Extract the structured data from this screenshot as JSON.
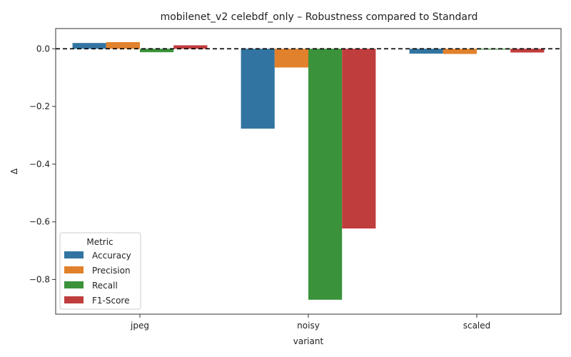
{
  "chart_data": {
    "type": "bar",
    "title": "mobilenet_v2 celebdf_only – Robustness compared to Standard",
    "xlabel": "variant",
    "ylabel": "Δ",
    "categories": [
      "jpeg",
      "noisy",
      "scaled"
    ],
    "ylim": [
      -0.92,
      0.07
    ],
    "yticks": [
      0.0,
      -0.2,
      -0.4,
      -0.6,
      -0.8
    ],
    "ytick_labels": [
      "0.0",
      "−0.2",
      "−0.4",
      "−0.6",
      "−0.8"
    ],
    "reference_line": 0.0,
    "legend": {
      "title": "Metric",
      "position": "lower-left"
    },
    "series": [
      {
        "name": "Accuracy",
        "color": "#3274a1",
        "values": [
          0.02,
          -0.277,
          -0.017
        ]
      },
      {
        "name": "Precision",
        "color": "#e1812c",
        "values": [
          0.023,
          -0.065,
          -0.018
        ]
      },
      {
        "name": "Recall",
        "color": "#3a923a",
        "values": [
          -0.012,
          -0.87,
          -0.003
        ]
      },
      {
        "name": "F1-Score",
        "color": "#c03d3e",
        "values": [
          0.012,
          -0.623,
          -0.013
        ]
      }
    ]
  }
}
